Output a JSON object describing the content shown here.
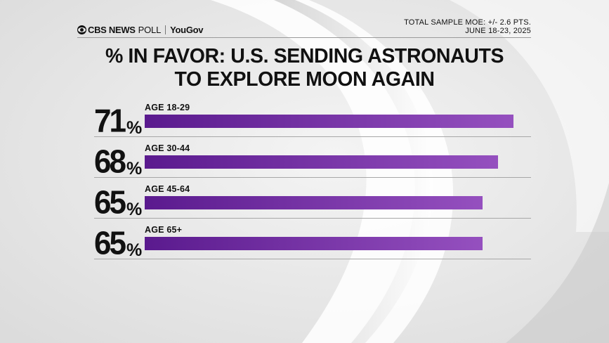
{
  "header": {
    "brand_cbs": "CBS NEWS",
    "brand_poll": "POLL",
    "brand_yougov": "YouGov",
    "moe_line1": "TOTAL SAMPLE MOE: +/- 2.6 PTS.",
    "moe_line2": "JUNE 18-23, 2025"
  },
  "colors": {
    "bar_start": "#5a1a8e",
    "bar_end": "#9550bf",
    "text": "#111111"
  },
  "chart_data": {
    "type": "bar",
    "orientation": "horizontal",
    "title_line1": "% IN FAVOR: U.S. SENDING ASTRONAUTS",
    "title_line2": "TO EXPLORE MOON AGAIN",
    "categories": [
      "AGE 18-29",
      "AGE 30-44",
      "AGE 45-64",
      "AGE 65+"
    ],
    "values": [
      71,
      68,
      65,
      65
    ],
    "value_suffix": "%",
    "xlim": [
      0,
      100
    ],
    "grid": false
  }
}
